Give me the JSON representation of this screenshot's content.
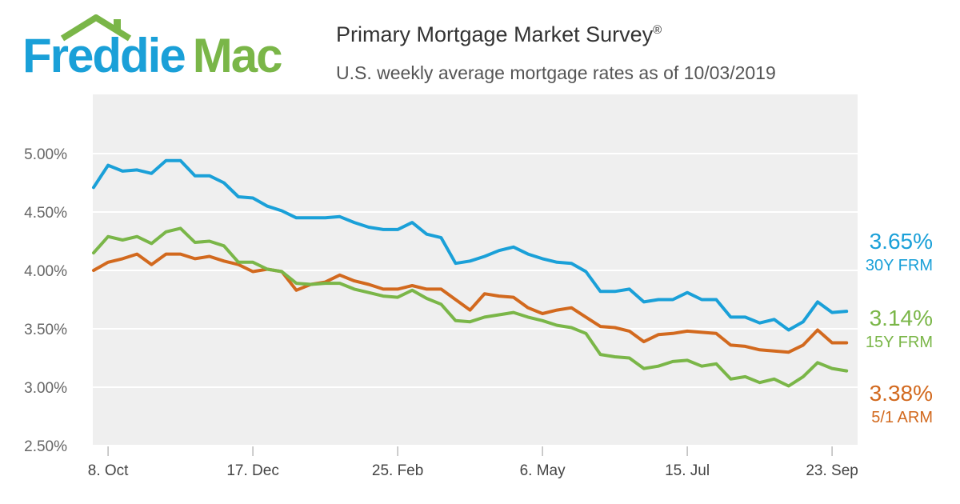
{
  "header": {
    "logo_part1": "Freddie",
    "logo_part2": "Mac",
    "title": "Primary Mortgage Market Survey",
    "title_mark": "®",
    "subtitle": "U.S. weekly average mortgage rates as of 10/03/2019"
  },
  "colors": {
    "frm30": "#1aa0d8",
    "frm15": "#7ab648",
    "arm51": "#d2691e",
    "plot_bg": "#efefef",
    "grid": "#ffffff"
  },
  "end_labels": [
    {
      "value": "3.65%",
      "name": "30Y FRM"
    },
    {
      "value": "3.14%",
      "name": "15Y FRM"
    },
    {
      "value": "3.38%",
      "name": "5/1 ARM"
    }
  ],
  "chart_data": {
    "type": "line",
    "title": "Primary Mortgage Market Survey",
    "subtitle": "U.S. weekly average mortgage rates as of 10/03/2019",
    "ylim": [
      2.5,
      5.0
    ],
    "y_ticks": [
      "2.50%",
      "3.00%",
      "3.50%",
      "4.00%",
      "4.50%",
      "5.00%"
    ],
    "y_tick_values": [
      2.5,
      3.0,
      3.5,
      4.0,
      4.5,
      5.0
    ],
    "x_ticks": [
      "8. Oct",
      "17. Dec",
      "25. Feb",
      "6. May",
      "15. Jul",
      "23. Sep"
    ],
    "x_tick_week_index": [
      1,
      11,
      21,
      31,
      41,
      51
    ],
    "grid": true,
    "x": [
      "2018-10-04",
      "2018-10-11",
      "2018-10-18",
      "2018-10-25",
      "2018-11-01",
      "2018-11-08",
      "2018-11-15",
      "2018-11-21",
      "2018-11-29",
      "2018-12-06",
      "2018-12-13",
      "2018-12-20",
      "2018-12-27",
      "2019-01-03",
      "2019-01-10",
      "2019-01-17",
      "2019-01-24",
      "2019-01-31",
      "2019-02-07",
      "2019-02-14",
      "2019-02-21",
      "2019-02-28",
      "2019-03-07",
      "2019-03-14",
      "2019-03-21",
      "2019-03-28",
      "2019-04-04",
      "2019-04-11",
      "2019-04-18",
      "2019-04-25",
      "2019-05-02",
      "2019-05-09",
      "2019-05-16",
      "2019-05-23",
      "2019-05-30",
      "2019-06-06",
      "2019-06-13",
      "2019-06-20",
      "2019-06-27",
      "2019-07-03",
      "2019-07-11",
      "2019-07-18",
      "2019-07-25",
      "2019-08-01",
      "2019-08-08",
      "2019-08-15",
      "2019-08-22",
      "2019-08-29",
      "2019-09-05",
      "2019-09-12",
      "2019-09-19",
      "2019-09-26",
      "2019-10-03"
    ],
    "series": [
      {
        "name": "30Y FRM",
        "end_label": "3.65%",
        "values": [
          4.71,
          4.9,
          4.85,
          4.86,
          4.83,
          4.94,
          4.94,
          4.81,
          4.81,
          4.75,
          4.63,
          4.62,
          4.55,
          4.51,
          4.45,
          4.45,
          4.45,
          4.46,
          4.41,
          4.37,
          4.35,
          4.35,
          4.41,
          4.31,
          4.28,
          4.06,
          4.08,
          4.12,
          4.17,
          4.2,
          4.14,
          4.1,
          4.07,
          4.06,
          3.99,
          3.82,
          3.82,
          3.84,
          3.73,
          3.75,
          3.75,
          3.81,
          3.75,
          3.75,
          3.6,
          3.6,
          3.55,
          3.58,
          3.49,
          3.56,
          3.73,
          3.64,
          3.65
        ]
      },
      {
        "name": "15Y FRM",
        "end_label": "3.14%",
        "values": [
          4.15,
          4.29,
          4.26,
          4.29,
          4.23,
          4.33,
          4.36,
          4.24,
          4.25,
          4.21,
          4.07,
          4.07,
          4.01,
          3.99,
          3.89,
          3.88,
          3.89,
          3.89,
          3.84,
          3.81,
          3.78,
          3.77,
          3.83,
          3.76,
          3.71,
          3.57,
          3.56,
          3.6,
          3.62,
          3.64,
          3.6,
          3.57,
          3.53,
          3.51,
          3.46,
          3.28,
          3.26,
          3.25,
          3.16,
          3.18,
          3.22,
          3.23,
          3.18,
          3.2,
          3.07,
          3.09,
          3.04,
          3.07,
          3.01,
          3.09,
          3.21,
          3.16,
          3.14
        ]
      },
      {
        "name": "5/1 ARM",
        "end_label": "3.38%",
        "values": [
          4.0,
          4.07,
          4.1,
          4.14,
          4.05,
          4.14,
          4.14,
          4.1,
          4.12,
          4.08,
          4.05,
          3.99,
          4.01,
          3.99,
          3.83,
          3.88,
          3.9,
          3.96,
          3.91,
          3.88,
          3.84,
          3.84,
          3.87,
          3.84,
          3.84,
          3.75,
          3.66,
          3.8,
          3.78,
          3.77,
          3.68,
          3.63,
          3.66,
          3.68,
          3.6,
          3.52,
          3.51,
          3.48,
          3.39,
          3.45,
          3.46,
          3.48,
          3.47,
          3.46,
          3.36,
          3.35,
          3.32,
          3.31,
          3.3,
          3.36,
          3.49,
          3.38,
          3.38
        ]
      }
    ]
  }
}
